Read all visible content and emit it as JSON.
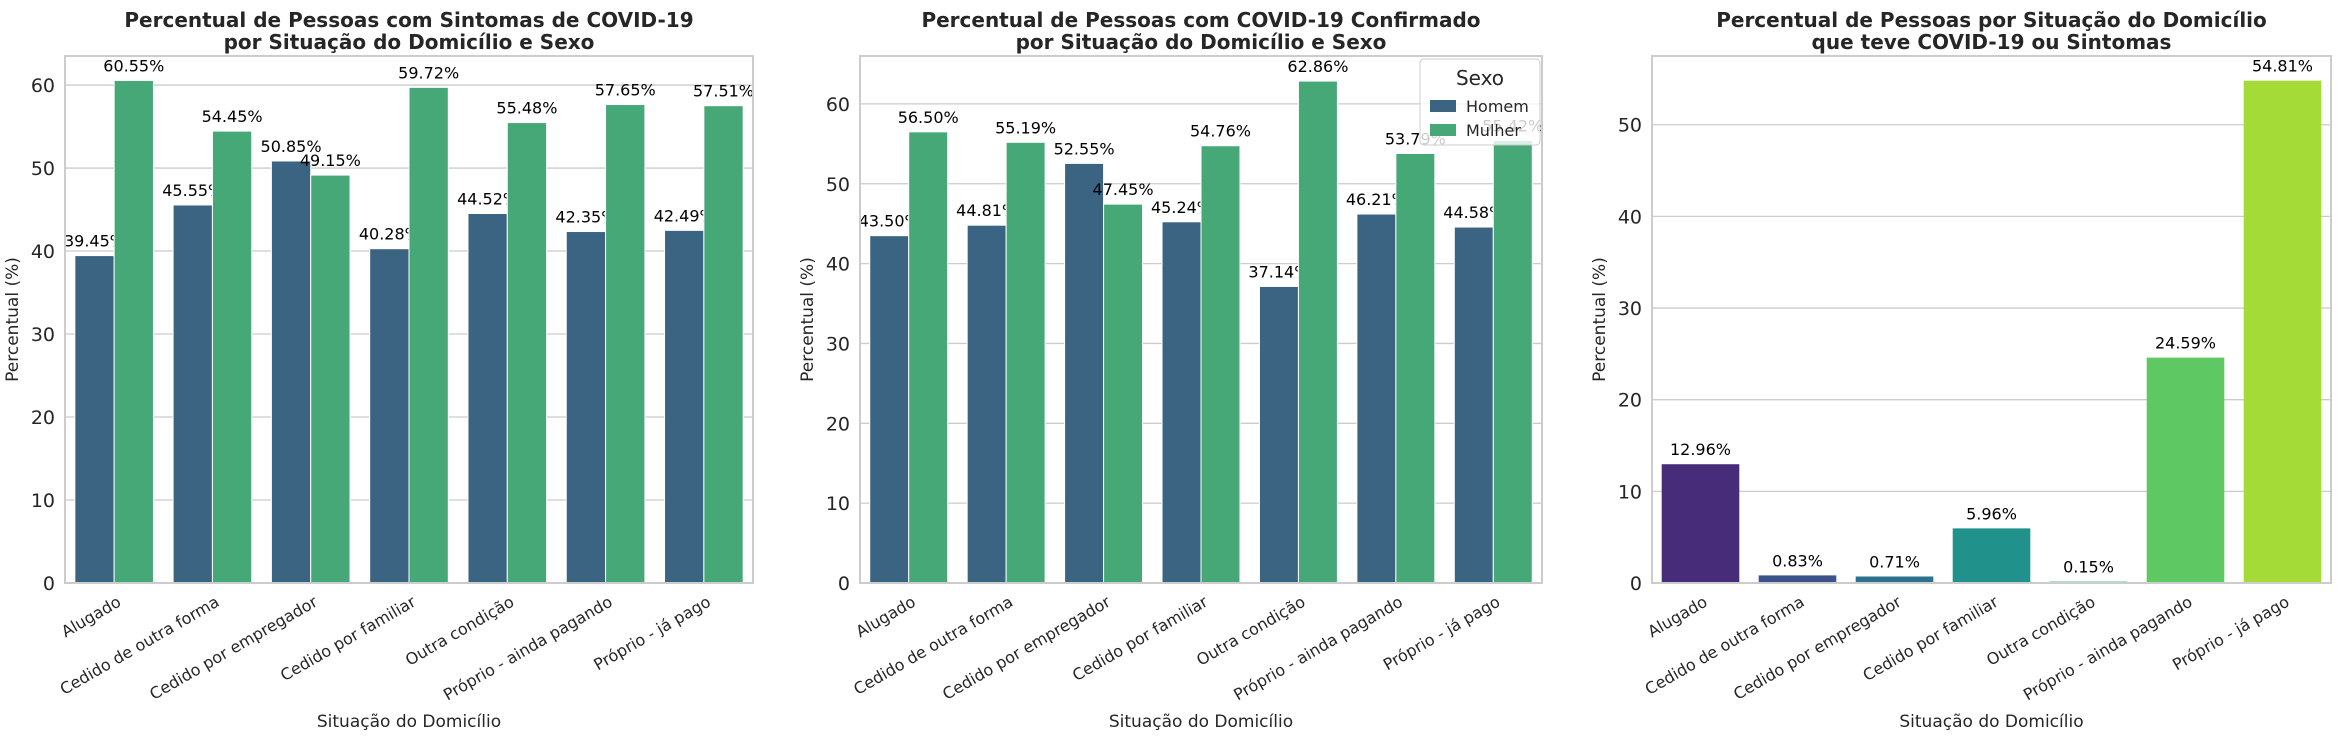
{
  "chart_data": [
    {
      "type": "bar",
      "title": [
        "Percentual de Pessoas com Sintomas de COVID-19",
        "por Situação do Domicílio e Sexo"
      ],
      "xlabel": "Situação do Domicílio",
      "ylabel": "Percentual (%)",
      "ylim": [
        0,
        63.5
      ],
      "yticks": [
        0,
        10,
        20,
        30,
        40,
        50,
        60
      ],
      "grid": true,
      "categories": [
        "Alugado",
        "Cedido de outra forma",
        "Cedido por empregador",
        "Cedido por familiar",
        "Outra condição",
        "Próprio - ainda pagando",
        "Próprio - já pago"
      ],
      "series": [
        {
          "name": "Homem",
          "color": "#3b6382",
          "values": [
            39.45,
            45.55,
            50.85,
            40.28,
            44.52,
            42.35,
            42.49
          ],
          "labels": [
            "39.45%",
            "45.55%",
            "50.85%",
            "40.28%",
            "44.52%",
            "42.35%",
            "42.49%"
          ]
        },
        {
          "name": "Mulher",
          "color": "#45a876",
          "values": [
            60.55,
            54.45,
            49.15,
            59.72,
            55.48,
            57.65,
            57.51
          ],
          "labels": [
            "60.55%",
            "54.45%",
            "49.15%",
            "59.72%",
            "55.48%",
            "57.65%",
            "57.51%"
          ]
        }
      ]
    },
    {
      "type": "bar",
      "title": [
        "Percentual de Pessoas com COVID-19 Confirmado",
        "por Situação do Domicílio e Sexo"
      ],
      "xlabel": "Situação do Domicílio",
      "ylabel": "Percentual (%)",
      "ylim": [
        0,
        66
      ],
      "yticks": [
        0,
        10,
        20,
        30,
        40,
        50,
        60
      ],
      "grid": true,
      "legend": {
        "title": "Sexo",
        "position": "top-right"
      },
      "categories": [
        "Alugado",
        "Cedido de outra forma",
        "Cedido por empregador",
        "Cedido por familiar",
        "Outra condição",
        "Próprio - ainda pagando",
        "Próprio - já pago"
      ],
      "series": [
        {
          "name": "Homem",
          "color": "#3b6382",
          "values": [
            43.5,
            44.81,
            52.55,
            45.24,
            37.14,
            46.21,
            44.58
          ],
          "labels": [
            "43.50%",
            "44.81%",
            "52.55%",
            "45.24%",
            "37.14%",
            "46.21%",
            "44.58%"
          ]
        },
        {
          "name": "Mulher",
          "color": "#45a876",
          "values": [
            56.5,
            55.19,
            47.45,
            54.76,
            62.86,
            53.79,
            55.42
          ],
          "labels": [
            "56.50%",
            "55.19%",
            "47.45%",
            "54.76%",
            "62.86%",
            "53.79%",
            "55.42%"
          ]
        }
      ]
    },
    {
      "type": "bar",
      "title": [
        "Percentual de Pessoas por Situação do Domicílio",
        "que teve COVID-19 ou Sintomas"
      ],
      "xlabel": "Situação do Domicílio",
      "ylabel": "Percentual (%)",
      "ylim": [
        0,
        57.5
      ],
      "yticks": [
        0,
        10,
        20,
        30,
        40,
        50
      ],
      "grid": true,
      "categories": [
        "Alugado",
        "Cedido de outra forma",
        "Cedido por empregador",
        "Cedido por familiar",
        "Outra condição",
        "Próprio - ainda pagando",
        "Próprio - já pago"
      ],
      "values": [
        12.96,
        0.83,
        0.71,
        5.96,
        0.15,
        24.59,
        54.81
      ],
      "labels": [
        "12.96%",
        "0.83%",
        "0.71%",
        "5.96%",
        "0.15%",
        "24.59%",
        "54.81%"
      ],
      "colors": [
        "#472c7a",
        "#3b528b",
        "#2c728e",
        "#21918c",
        "#28ae80",
        "#5ec962",
        "#a5db36"
      ]
    }
  ]
}
